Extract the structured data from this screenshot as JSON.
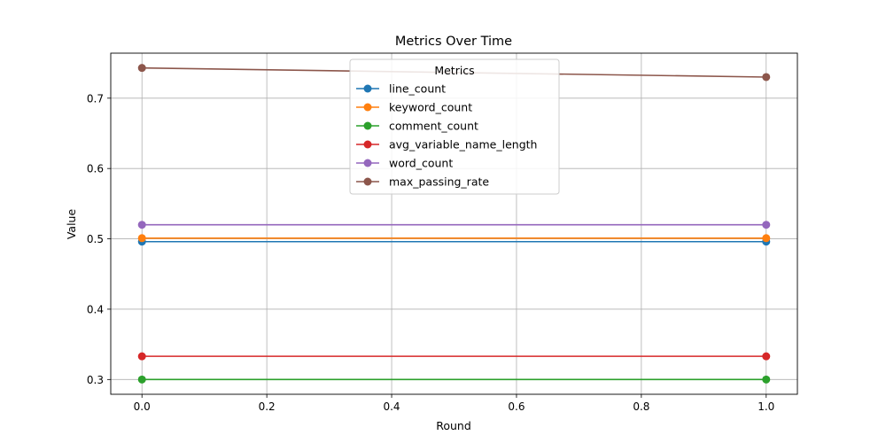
{
  "chart_data": {
    "type": "line",
    "title": "Metrics Over Time",
    "xlabel": "Round",
    "ylabel": "Value",
    "x": [
      0.0,
      1.0
    ],
    "xlim": [
      -0.05,
      1.05
    ],
    "ylim": [
      0.279,
      0.764
    ],
    "xticks": [
      0.0,
      0.2,
      0.4,
      0.6,
      0.8,
      1.0
    ],
    "xtick_labels": [
      "0.0",
      "0.2",
      "0.4",
      "0.6",
      "0.8",
      "1.0"
    ],
    "yticks": [
      0.3,
      0.4,
      0.5,
      0.6,
      0.7
    ],
    "ytick_labels": [
      "0.3",
      "0.4",
      "0.5",
      "0.6",
      "0.7"
    ],
    "grid": true,
    "legend": {
      "title": "Metrics",
      "placement": "upper center"
    },
    "series": [
      {
        "name": "line_count",
        "color": "#1f77b4",
        "values": [
          0.496,
          0.496
        ]
      },
      {
        "name": "keyword_count",
        "color": "#ff7f0e",
        "values": [
          0.501,
          0.501
        ]
      },
      {
        "name": "comment_count",
        "color": "#2ca02c",
        "values": [
          0.3,
          0.3
        ]
      },
      {
        "name": "avg_variable_name_length",
        "color": "#d62728",
        "values": [
          0.333,
          0.333
        ]
      },
      {
        "name": "word_count",
        "color": "#9467bd",
        "values": [
          0.52,
          0.52
        ]
      },
      {
        "name": "max_passing_rate",
        "color": "#8c564b",
        "values": [
          0.743,
          0.73
        ]
      }
    ]
  }
}
